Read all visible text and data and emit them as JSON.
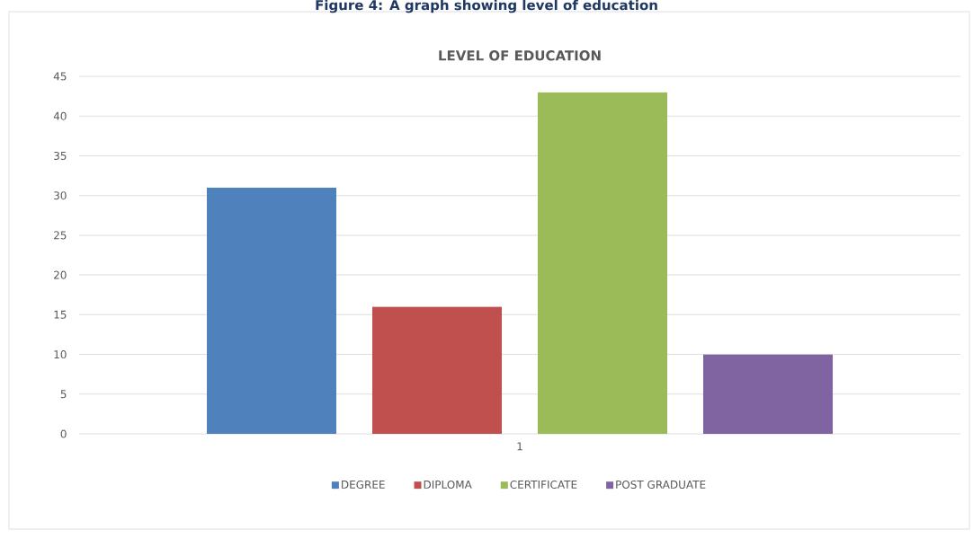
{
  "chart_data": {
    "type": "bar",
    "title": "LEVEL OF EDUCATION",
    "annotations": [
      "Figure 4: A graph showing level of education"
    ],
    "categories": [
      "1"
    ],
    "series": [
      {
        "name": "DEGREE",
        "color": "#4f81bd",
        "values": [
          31
        ]
      },
      {
        "name": "DIPLOMA",
        "color": "#c0504d",
        "values": [
          16
        ]
      },
      {
        "name": "CERTIFICATE",
        "color": "#9bbb59",
        "values": [
          43
        ]
      },
      {
        "name": "POST GRADUATE",
        "color": "#8064a2",
        "values": [
          10
        ]
      }
    ],
    "ylim": [
      0,
      45
    ],
    "yticks": [
      0,
      5,
      10,
      15,
      20,
      25,
      30,
      35,
      40,
      45
    ],
    "grid": "y",
    "legend": "bottom"
  }
}
